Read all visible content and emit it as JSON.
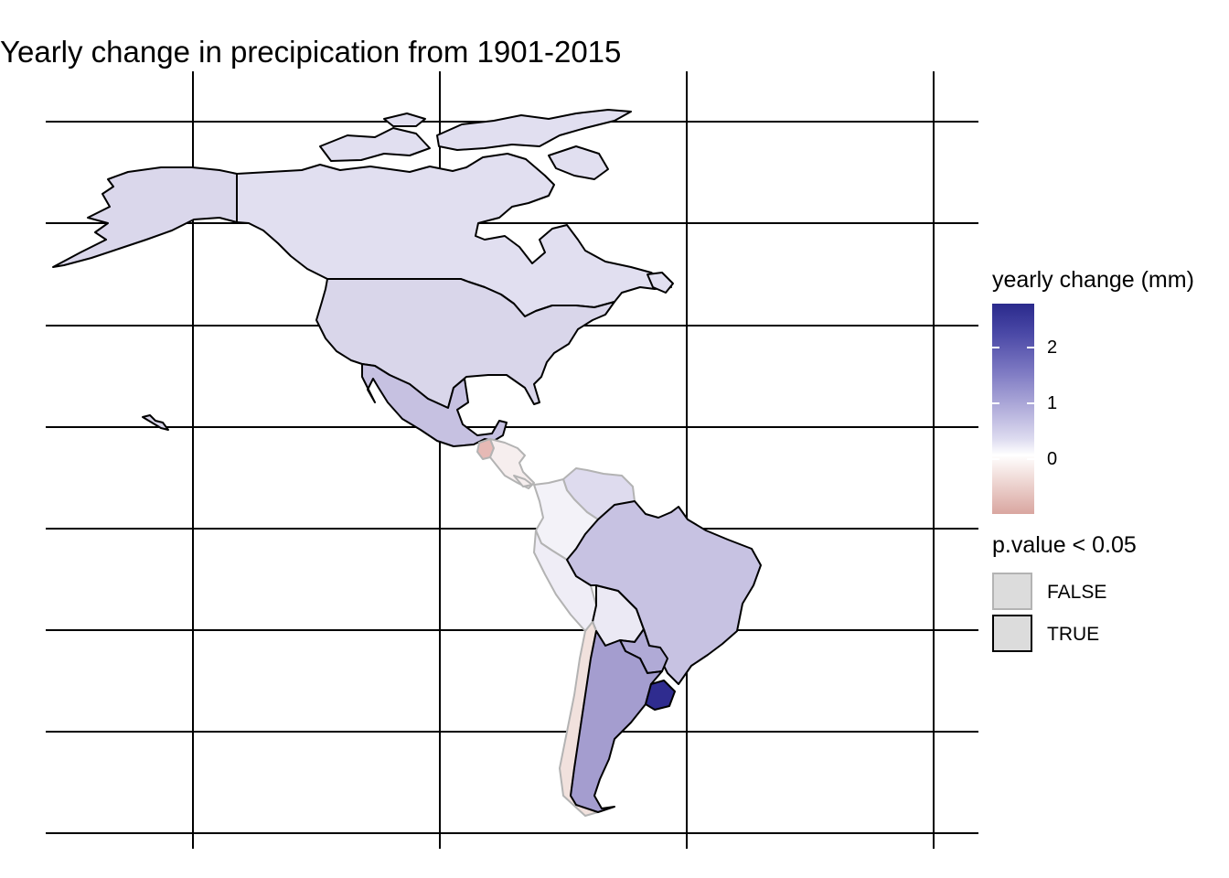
{
  "title": "Yearly change in precipication from 1901-2015",
  "legend": {
    "color": {
      "title": "yearly change (mm)",
      "ticks": [
        {
          "value": 2,
          "label": "2"
        },
        {
          "value": 1,
          "label": "1"
        },
        {
          "value": 0,
          "label": "0"
        }
      ],
      "colors": {
        "high": "#2a2a8c",
        "mid": "#ffffff",
        "low": "#d9a6a0"
      }
    },
    "pvalue": {
      "title": "p.value < 0.05",
      "keys": [
        {
          "label": "FALSE",
          "border": "#b3b3b3"
        },
        {
          "label": "TRUE",
          "border": "#000000"
        }
      ]
    }
  },
  "regions": [
    {
      "name": "Canada",
      "fill": "#e1dff0",
      "significant": true
    },
    {
      "name": "United States",
      "fill": "#d9d6ea",
      "significant": true
    },
    {
      "name": "Alaska",
      "fill": "#dad7eb",
      "significant": true
    },
    {
      "name": "Mexico",
      "fill": "#c6c1e1",
      "significant": true
    },
    {
      "name": "Guatemala",
      "fill": "#e6b9b5",
      "significant": false
    },
    {
      "name": "Central America",
      "fill": "#f6eeee",
      "significant": false
    },
    {
      "name": "Venezuela",
      "fill": "#dedbee",
      "significant": false
    },
    {
      "name": "Colombia",
      "fill": "#f3f2f8",
      "significant": false
    },
    {
      "name": "Peru",
      "fill": "#efedf6",
      "significant": false
    },
    {
      "name": "Bolivia",
      "fill": "#ebe9f4",
      "significant": true
    },
    {
      "name": "Chile",
      "fill": "#f1e1dd",
      "significant": false
    },
    {
      "name": "Brazil",
      "fill": "#c7c2e2",
      "significant": true
    },
    {
      "name": "Paraguay",
      "fill": "#b0aad6",
      "significant": true
    },
    {
      "name": "Argentina",
      "fill": "#a49dcf",
      "significant": true
    },
    {
      "name": "Uruguay",
      "fill": "#2f2c8f",
      "significant": true
    }
  ]
}
